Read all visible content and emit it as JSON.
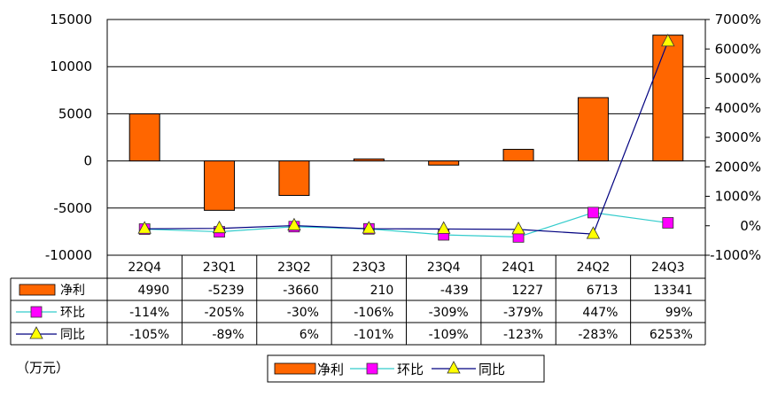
{
  "chart_data": {
    "type": "bar",
    "categories": [
      "22Q4",
      "23Q1",
      "23Q2",
      "23Q3",
      "23Q4",
      "24Q1",
      "24Q2",
      "24Q3"
    ],
    "series": [
      {
        "name": "净利",
        "kind": "bar",
        "axis": "left",
        "color": "#ff6600",
        "values": [
          4990,
          -5239,
          -3660,
          210,
          -439,
          1227,
          6713,
          13341
        ]
      },
      {
        "name": "环比",
        "kind": "line",
        "axis": "right",
        "color": "#33cccc",
        "marker": "square",
        "marker_color": "#ff00ff",
        "values": [
          -114,
          -205,
          -30,
          -106,
          -309,
          -379,
          447,
          99
        ]
      },
      {
        "name": "同比",
        "kind": "line",
        "axis": "right",
        "color": "#000080",
        "marker": "triangle",
        "marker_color": "#ffff00",
        "values": [
          -105,
          -89,
          6,
          -101,
          -109,
          -123,
          -283,
          6253
        ]
      }
    ],
    "table_rows": [
      {
        "name": "净利",
        "cells": [
          "4990",
          "-5239",
          "-3660",
          "210",
          "-439",
          "1227",
          "6713",
          "13341"
        ]
      },
      {
        "name": "环比",
        "cells": [
          "-114%",
          "-205%",
          "-30%",
          "-106%",
          "-309%",
          "-379%",
          "447%",
          "99%"
        ]
      },
      {
        "name": "同比",
        "cells": [
          "-105%",
          "-89%",
          "6%",
          "-101%",
          "-109%",
          "-123%",
          "-283%",
          "6253%"
        ]
      }
    ],
    "left_axis": {
      "min": -10000,
      "max": 15000,
      "step": 5000,
      "ticks": [
        "15000",
        "10000",
        "5000",
        "0",
        "-5000",
        "-10000"
      ]
    },
    "right_axis": {
      "min": -1000,
      "max": 7000,
      "step": 1000,
      "ticks": [
        "7000%",
        "6000%",
        "5000%",
        "4000%",
        "3000%",
        "2000%",
        "1000%",
        "0%",
        "-1000%"
      ]
    },
    "grid": true,
    "legend_placement": "bottom",
    "unit_label": "（万元）"
  }
}
